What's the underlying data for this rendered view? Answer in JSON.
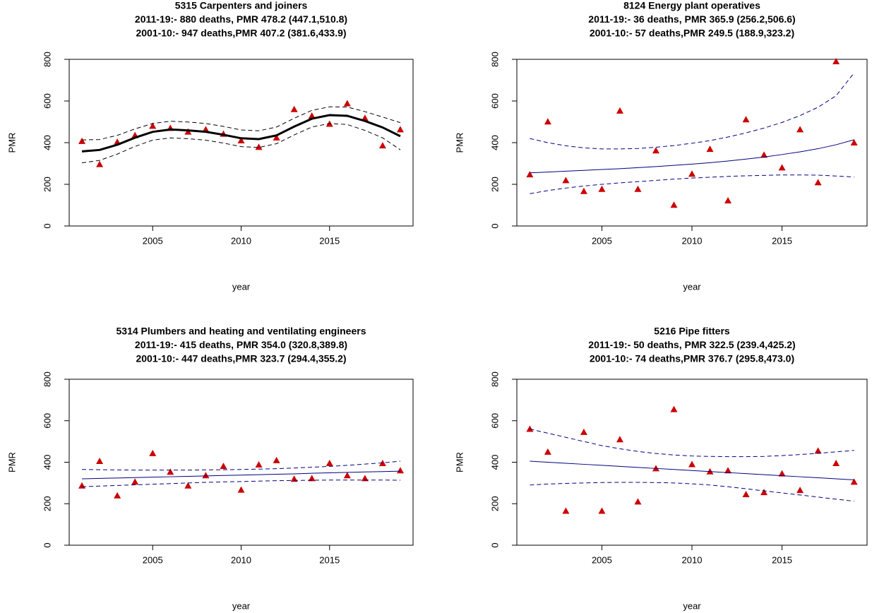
{
  "chart_data": [
    {
      "type": "scatter",
      "title": "5315 Carpenters and joiners",
      "subtitles": [
        "2011-19:- 880 deaths, PMR 478.2 (447.1,510.8)",
        "2001-10:- 947 deaths,PMR 407.2 (381.6,433.9)"
      ],
      "xlabel": "year",
      "ylabel": "PMR",
      "x": [
        2001,
        2002,
        2003,
        2004,
        2005,
        2006,
        2007,
        2008,
        2009,
        2010,
        2011,
        2012,
        2013,
        2014,
        2015,
        2016,
        2017,
        2018,
        2019
      ],
      "xlim": [
        2000.28,
        2019.72
      ],
      "xticks": [
        2005,
        2010,
        2015
      ],
      "ylim": [
        0,
        800
      ],
      "yticks": [
        0,
        200,
        400,
        600,
        800
      ],
      "series": [
        {
          "color": "#cc0000",
          "marker": "triangle",
          "values": [
            407,
            296,
            403,
            435,
            480,
            470,
            452,
            463,
            442,
            410,
            379,
            424,
            560,
            529,
            490,
            588,
            518,
            386,
            463
          ]
        },
        {
          "color": "#000000",
          "style": "solid",
          "width": 3,
          "values": [
            358,
            365,
            390,
            424,
            452,
            463,
            459,
            452,
            438,
            421,
            417,
            435,
            477,
            515,
            532,
            529,
            504,
            473,
            431
          ]
        },
        {
          "color": "#000000",
          "style": "dashed",
          "width": 1,
          "values": [
            413,
            415,
            435,
            466,
            492,
            503,
            499,
            492,
            478,
            461,
            457,
            475,
            517,
            555,
            572,
            571,
            549,
            523,
            496
          ]
        },
        {
          "color": "#000000",
          "style": "dashed",
          "width": 1,
          "values": [
            303,
            315,
            345,
            382,
            412,
            423,
            419,
            412,
            398,
            381,
            377,
            395,
            437,
            475,
            492,
            487,
            459,
            423,
            366
          ]
        }
      ]
    },
    {
      "type": "scatter",
      "title": "8124 Energy plant operatives",
      "subtitles": [
        "2011-19:- 36 deaths, PMR 365.9 (256.2,506.6)",
        "2001-10:- 57 deaths,PMR 249.5 (188.9,323.2)"
      ],
      "xlabel": "year",
      "ylabel": "PMR",
      "x": [
        2001,
        2002,
        2003,
        2004,
        2005,
        2006,
        2007,
        2008,
        2009,
        2010,
        2011,
        2012,
        2013,
        2014,
        2015,
        2016,
        2017,
        2018,
        2019
      ],
      "xlim": [
        2000.28,
        2019.72
      ],
      "xticks": [
        2005,
        2010,
        2015
      ],
      "ylim": [
        0,
        800
      ],
      "yticks": [
        0,
        200,
        400,
        600,
        800
      ],
      "series": [
        {
          "color": "#cc0000",
          "marker": "triangle",
          "values": [
            247,
            501,
            219,
            167,
            177,
            553,
            177,
            362,
            101,
            250,
            369,
            122,
            511,
            341,
            280,
            463,
            209,
            790,
            400
          ]
        },
        {
          "color": "#000080",
          "style": "solid",
          "width": 1,
          "values": [
            255,
            259,
            263,
            267,
            271,
            275,
            280,
            285,
            291,
            297,
            304,
            312,
            321,
            331,
            343,
            356,
            371,
            390,
            414
          ]
        },
        {
          "color": "#000080",
          "style": "dashed",
          "width": 1,
          "values": [
            420,
            400,
            385,
            375,
            370,
            370,
            372,
            378,
            386,
            397,
            410,
            427,
            447,
            470,
            497,
            530,
            570,
            625,
            735
          ]
        },
        {
          "color": "#000080",
          "style": "dashed",
          "width": 1,
          "values": [
            155,
            170,
            182,
            192,
            200,
            207,
            213,
            219,
            225,
            230,
            234,
            238,
            241,
            243,
            245,
            245,
            244,
            240,
            235
          ]
        }
      ]
    },
    {
      "type": "scatter",
      "title": "5314 Plumbers and heating and ventilating engineers",
      "subtitles": [
        "2011-19:- 415 deaths, PMR 354.0 (320.8,389.8)",
        "2001-10:- 447 deaths,PMR 323.7 (294.4,355.2)"
      ],
      "xlabel": "year",
      "ylabel": "PMR",
      "x": [
        2001,
        2002,
        2003,
        2004,
        2005,
        2006,
        2007,
        2008,
        2009,
        2010,
        2011,
        2012,
        2013,
        2014,
        2015,
        2016,
        2017,
        2018,
        2019
      ],
      "xlim": [
        2000.28,
        2019.72
      ],
      "xticks": [
        2005,
        2010,
        2015
      ],
      "ylim": [
        0,
        800
      ],
      "yticks": [
        0,
        200,
        400,
        600,
        800
      ],
      "series": [
        {
          "color": "#cc0000",
          "marker": "triangle",
          "values": [
            287,
            405,
            239,
            305,
            443,
            353,
            287,
            336,
            381,
            267,
            388,
            409,
            319,
            322,
            395,
            336,
            322,
            395,
            360
          ]
        },
        {
          "color": "#000080",
          "style": "solid",
          "width": 1,
          "values": [
            320,
            322,
            324,
            326,
            328,
            330,
            332,
            334,
            336,
            338,
            340,
            342,
            344,
            347,
            349,
            351,
            353,
            355,
            357
          ]
        },
        {
          "color": "#000080",
          "style": "dashed",
          "width": 1,
          "values": [
            365,
            364,
            363,
            362,
            362,
            362,
            362,
            363,
            364,
            365,
            367,
            369,
            372,
            376,
            380,
            385,
            391,
            397,
            405
          ]
        },
        {
          "color": "#000080",
          "style": "dashed",
          "width": 1,
          "values": [
            282,
            285,
            288,
            291,
            294,
            297,
            300,
            303,
            305,
            307,
            309,
            311,
            312,
            313,
            314,
            314,
            314,
            314,
            313
          ]
        }
      ]
    },
    {
      "type": "scatter",
      "title": "5216 Pipe fitters",
      "subtitles": [
        "2011-19:- 50 deaths, PMR 322.5 (239.4,425.2)",
        "2001-10:- 74 deaths,PMR 376.7 (295.8,473.0)"
      ],
      "xlabel": "year",
      "ylabel": "PMR",
      "x": [
        2001,
        2002,
        2003,
        2004,
        2005,
        2006,
        2007,
        2008,
        2009,
        2010,
        2011,
        2012,
        2013,
        2014,
        2015,
        2016,
        2017,
        2018,
        2019
      ],
      "xlim": [
        2000.28,
        2019.72
      ],
      "xticks": [
        2005,
        2010,
        2015
      ],
      "ylim": [
        0,
        800
      ],
      "yticks": [
        0,
        200,
        400,
        600,
        800
      ],
      "series": [
        {
          "color": "#cc0000",
          "marker": "triangle",
          "values": [
            560,
            450,
            165,
            545,
            165,
            510,
            210,
            370,
            655,
            390,
            355,
            360,
            245,
            255,
            345,
            265,
            455,
            395,
            305
          ]
        },
        {
          "color": "#000080",
          "style": "solid",
          "width": 1,
          "values": [
            405,
            400,
            395,
            390,
            385,
            380,
            375,
            370,
            365,
            360,
            355,
            350,
            345,
            340,
            335,
            330,
            325,
            320,
            315
          ]
        },
        {
          "color": "#000080",
          "style": "dashed",
          "width": 1,
          "values": [
            560,
            540,
            520,
            500,
            480,
            465,
            452,
            442,
            435,
            430,
            428,
            427,
            427,
            428,
            432,
            437,
            443,
            450,
            457
          ]
        },
        {
          "color": "#000080",
          "style": "dashed",
          "width": 1,
          "values": [
            290,
            295,
            298,
            300,
            302,
            303,
            303,
            302,
            300,
            296,
            290,
            282,
            272,
            262,
            252,
            242,
            232,
            222,
            212
          ]
        }
      ]
    }
  ]
}
